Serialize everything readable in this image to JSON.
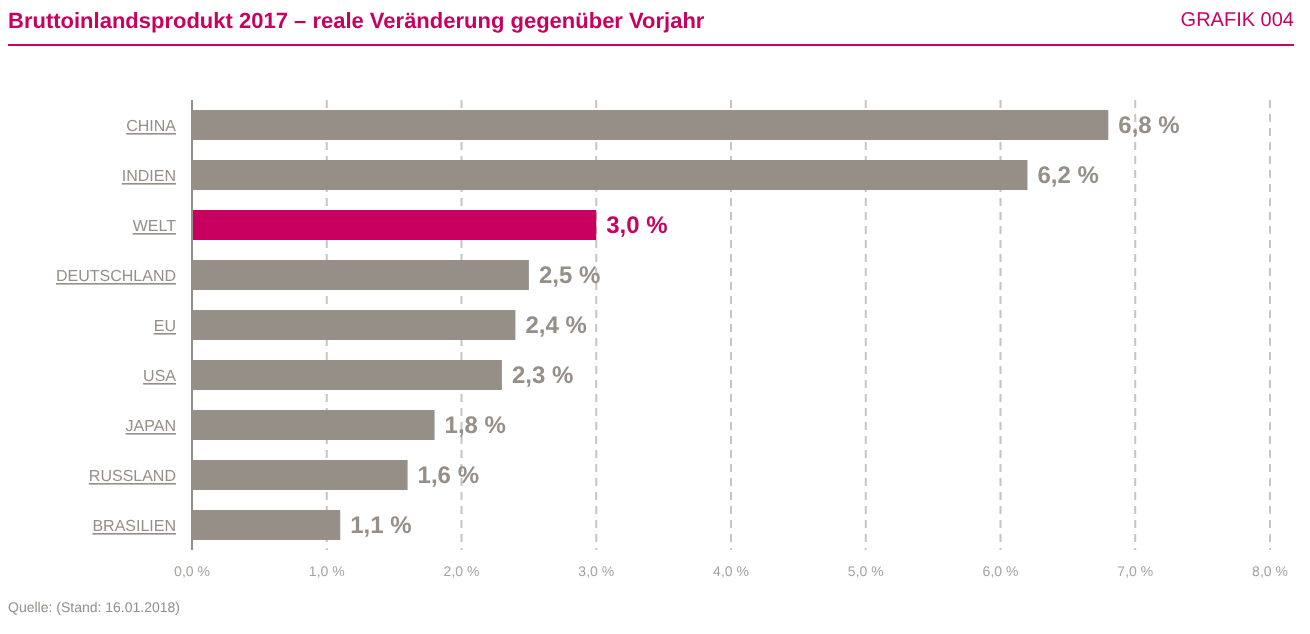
{
  "chart_data": {
    "type": "bar",
    "orientation": "horizontal",
    "title": "Bruttoinlandsprodukt 2017 – reale Veränderung gegenüber Vorjahr",
    "categories": [
      "CHINA",
      "INDIEN",
      "WELT",
      "DEUTSCHLAND",
      "EU",
      "USA",
      "JAPAN",
      "RUSSLAND",
      "BRASILIEN"
    ],
    "values": [
      6.8,
      6.2,
      3.0,
      2.5,
      2.4,
      2.3,
      1.8,
      1.6,
      1.1
    ],
    "colors": [
      "#968f88",
      "#968f88",
      "#c8005f",
      "#968f88",
      "#968f88",
      "#968f88",
      "#968f88",
      "#968f88",
      "#968f88"
    ],
    "value_labels": [
      "6,8 %",
      "6,2 %",
      "3,0 %",
      "2,5 %",
      "2,4 %",
      "2,3 %",
      "1,8 %",
      "1,6 %",
      "1,1 %"
    ],
    "xlim": [
      0,
      8
    ],
    "xticks": [
      {
        "value": 0,
        "label": "0,0 %"
      },
      {
        "value": 1,
        "label": "1,0 %"
      },
      {
        "value": 2,
        "label": "2,0 %"
      },
      {
        "value": 3,
        "label": "3,0 %"
      },
      {
        "value": 4,
        "label": "4,0 %"
      },
      {
        "value": 5,
        "label": "5,0 %"
      },
      {
        "value": 6,
        "label": "6,0 %"
      },
      {
        "value": 7,
        "label": "7,0 %"
      },
      {
        "value": 8,
        "label": "8,0 %"
      }
    ],
    "grid": "x",
    "annotations": [
      "GRAFIK 004",
      "Quelle: (Stand: 16.01.2018)"
    ]
  }
}
